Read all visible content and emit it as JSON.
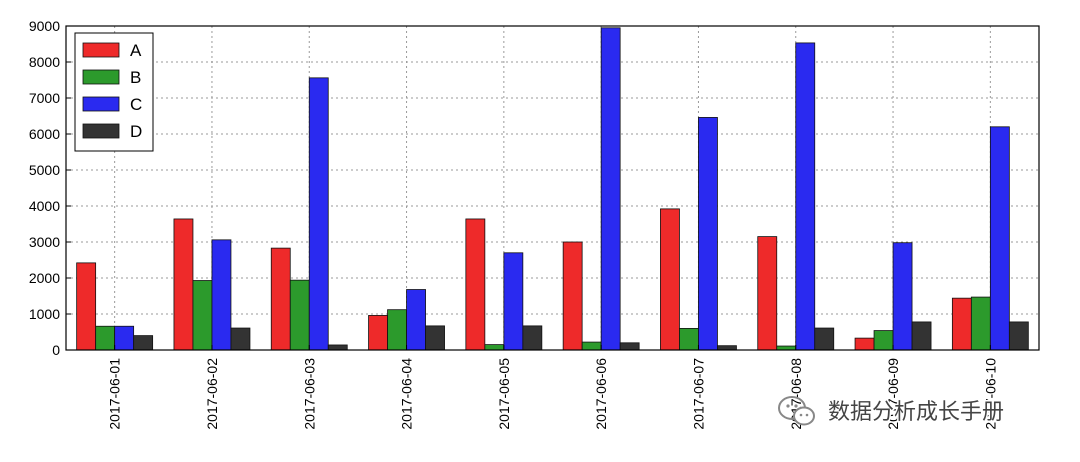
{
  "chart_data": {
    "type": "bar",
    "categories": [
      "2017-06-01",
      "2017-06-02",
      "2017-06-03",
      "2017-06-04",
      "2017-06-05",
      "2017-06-06",
      "2017-06-07",
      "2017-06-08",
      "2017-06-09",
      "2017-06-10"
    ],
    "series": [
      {
        "name": "A",
        "color": "#ee2a2a",
        "values": [
          2420,
          3640,
          2830,
          960,
          3640,
          3000,
          3920,
          3150,
          330,
          1440
        ]
      },
      {
        "name": "B",
        "color": "#2c9a2c",
        "values": [
          660,
          1930,
          1940,
          1120,
          150,
          220,
          600,
          110,
          540,
          1470
        ]
      },
      {
        "name": "C",
        "color": "#2a2af0",
        "values": [
          660,
          3060,
          7560,
          1680,
          2700,
          8950,
          6460,
          8530,
          2980,
          6200
        ]
      },
      {
        "name": "D",
        "color": "#333333",
        "values": [
          400,
          610,
          140,
          670,
          670,
          200,
          120,
          610,
          780,
          780
        ]
      }
    ],
    "yticks": [
      "0",
      "1000",
      "2000",
      "3000",
      "4000",
      "5000",
      "6000",
      "7000",
      "8000",
      "9000"
    ],
    "ylim": [
      0,
      9000
    ],
    "title": "",
    "xlabel": "",
    "ylabel": "",
    "grid": true,
    "legend": "top-left"
  },
  "watermark": {
    "icon": "wechat-icon",
    "text": "数据分析成长手册"
  }
}
